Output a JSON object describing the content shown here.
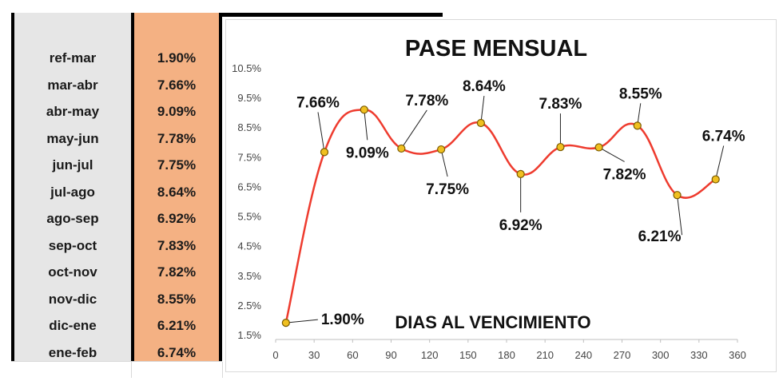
{
  "table": {
    "rows": [
      {
        "label": "ref-mar",
        "value": "1.90%"
      },
      {
        "label": "mar-abr",
        "value": "7.66%"
      },
      {
        "label": "abr-may",
        "value": "9.09%"
      },
      {
        "label": "may-jun",
        "value": "7.78%"
      },
      {
        "label": "jun-jul",
        "value": "7.75%"
      },
      {
        "label": "jul-ago",
        "value": "8.64%"
      },
      {
        "label": "ago-sep",
        "value": "6.92%"
      },
      {
        "label": "sep-oct",
        "value": "7.83%"
      },
      {
        "label": "oct-nov",
        "value": "7.82%"
      },
      {
        "label": "nov-dic",
        "value": "8.55%"
      },
      {
        "label": "dic-ene",
        "value": "6.21%"
      },
      {
        "label": "ene-feb",
        "value": "6.74%"
      }
    ]
  },
  "colors": {
    "line": "#ee3b2e",
    "marker_fill": "#f0c020",
    "marker_stroke": "#7a5a00",
    "value_column": "#f4b183",
    "label_column": "#e6e6e6"
  },
  "chart_data": {
    "type": "line",
    "title": "PASE MENSUAL",
    "xlabel": "DIAS AL VENCIMIENTO",
    "ylabel": "",
    "xlim": [
      0,
      360
    ],
    "ylim": [
      1.5,
      10.5
    ],
    "x_ticks": [
      "0",
      "30",
      "60",
      "90",
      "120",
      "150",
      "180",
      "210",
      "240",
      "270",
      "300",
      "330",
      "360"
    ],
    "y_ticks": [
      "1.5%",
      "2.5%",
      "3.5%",
      "4.5%",
      "5.5%",
      "6.5%",
      "7.5%",
      "8.5%",
      "9.5%",
      "10.5%"
    ],
    "grid": false,
    "smooth": true,
    "series": [
      {
        "x": [
          8,
          38,
          69,
          98,
          129,
          160,
          191,
          222,
          252,
          282,
          313,
          343
        ],
        "values": [
          1.9,
          7.66,
          9.09,
          7.78,
          7.75,
          8.64,
          6.92,
          7.83,
          7.82,
          8.55,
          6.21,
          6.74
        ],
        "labels": [
          "1.90%",
          "7.66%",
          "9.09%",
          "7.78%",
          "7.75%",
          "8.64%",
          "6.92%",
          "7.83%",
          "7.82%",
          "8.55%",
          "6.21%",
          "6.74%"
        ]
      }
    ]
  }
}
